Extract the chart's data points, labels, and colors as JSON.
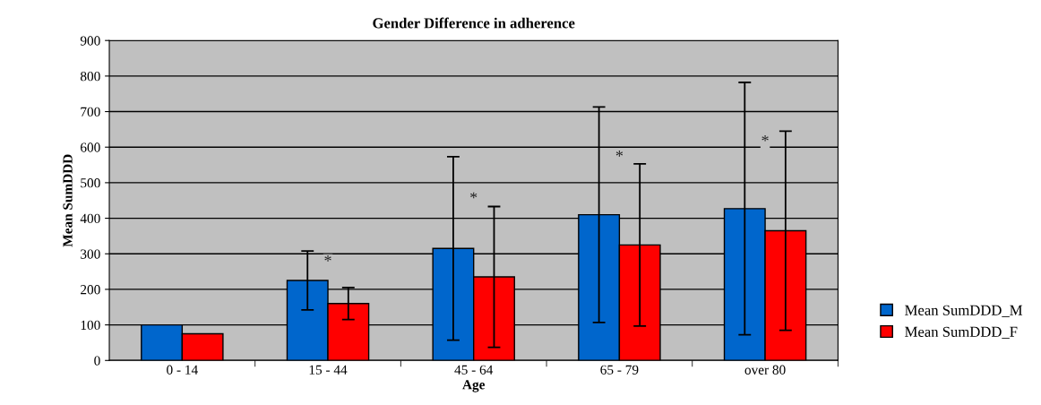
{
  "chart_data": {
    "type": "bar",
    "title": "Gender Difference in adherence",
    "xlabel": "Age",
    "ylabel": "Mean SumDDD",
    "categories": [
      "0 - 14",
      "15 - 44",
      "45 - 64",
      "65 - 79",
      "over 80"
    ],
    "series": [
      {
        "name": "Mean SumDDD_M",
        "color": "#0066cc",
        "values": [
          100,
          225,
          315,
          410,
          427
        ],
        "errors": [
          null,
          83,
          258,
          303,
          355
        ]
      },
      {
        "name": "Mean SumDDD_F",
        "color": "#ff0000",
        "values": [
          75,
          160,
          235,
          325,
          365
        ],
        "errors": [
          null,
          45,
          198,
          228,
          280
        ]
      }
    ],
    "annotations": [
      "*",
      "*",
      "*",
      "*"
    ],
    "ylim": [
      0,
      900
    ],
    "yticks": [
      0,
      100,
      200,
      300,
      400,
      500,
      600,
      700,
      800,
      900
    ],
    "grid": "y",
    "legend": "right"
  }
}
